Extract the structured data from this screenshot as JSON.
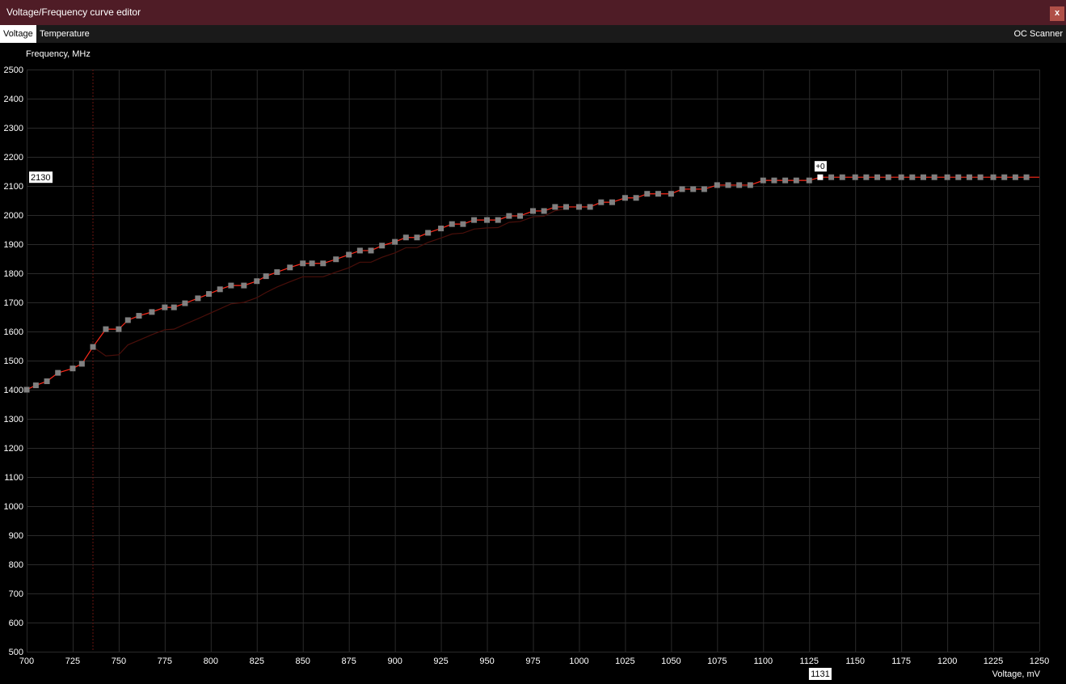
{
  "window": {
    "title": "Voltage/Frequency curve editor",
    "close_label": "x"
  },
  "tabs": [
    {
      "label": "Voltage",
      "active": true
    },
    {
      "label": "Temperature",
      "active": false
    }
  ],
  "oc_scanner_label": "OC Scanner",
  "colors": {
    "curve": "#ff2a1a",
    "default_curve": "#4a0f0a",
    "point": "#808080",
    "selected_point": "#ffffff",
    "grid": "#2a2a2a",
    "titlebar": "#4f1c26",
    "close": "#b05048"
  },
  "chart_data": {
    "type": "line",
    "xlabel": "Voltage, mV",
    "ylabel": "Frequency, MHz",
    "xlim": [
      700,
      1250
    ],
    "ylim": [
      500,
      2500
    ],
    "xticks": [
      700,
      725,
      750,
      775,
      800,
      825,
      850,
      875,
      900,
      925,
      950,
      975,
      1000,
      1025,
      1050,
      1075,
      1100,
      1125,
      1150,
      1175,
      1200,
      1225,
      1250
    ],
    "yticks": [
      500,
      600,
      700,
      800,
      900,
      1000,
      1100,
      1200,
      1300,
      1400,
      1500,
      1600,
      1700,
      1800,
      1900,
      2000,
      2100,
      2200,
      2300,
      2400,
      2500
    ],
    "grid": true,
    "marker_voltage": 736,
    "selected": {
      "voltage": 1131,
      "frequency": 2130,
      "offset_label": "+0",
      "x_readout": "1131",
      "y_readout": "2130"
    },
    "series": [
      {
        "role": "curve",
        "x": [
          700,
          705,
          711,
          717,
          725,
          730,
          736,
          743,
          750,
          755,
          761,
          768,
          775,
          780,
          786,
          793,
          799,
          805,
          811,
          818,
          825,
          830,
          836,
          843,
          850,
          855,
          861,
          868,
          875,
          881,
          887,
          893,
          900,
          906,
          912,
          918,
          925,
          931,
          937,
          943,
          950,
          956,
          962,
          968,
          975,
          981,
          987,
          993,
          1000,
          1006,
          1012,
          1018,
          1025,
          1031,
          1037,
          1043,
          1050,
          1056,
          1062,
          1068,
          1075,
          1081,
          1087,
          1093,
          1100,
          1106,
          1112,
          1118,
          1125,
          1131,
          1137,
          1143,
          1150,
          1156,
          1162,
          1168,
          1175,
          1181,
          1187,
          1193,
          1200,
          1206,
          1212,
          1218,
          1225,
          1231,
          1237,
          1243
        ],
        "y": [
          1400,
          1415,
          1429,
          1458,
          1473,
          1489,
          1547,
          1608,
          1608,
          1639,
          1654,
          1667,
          1683,
          1683,
          1697,
          1714,
          1729,
          1745,
          1758,
          1758,
          1773,
          1790,
          1804,
          1820,
          1834,
          1834,
          1834,
          1848,
          1864,
          1878,
          1878,
          1895,
          1908,
          1923,
          1923,
          1939,
          1954,
          1969,
          1969,
          1983,
          1983,
          1983,
          1997,
          1997,
          2014,
          2014,
          2028,
          2028,
          2028,
          2028,
          2044,
          2044,
          2059,
          2059,
          2073,
          2073,
          2073,
          2089,
          2089,
          2089,
          2103,
          2103,
          2103,
          2103,
          2119,
          2119,
          2119,
          2119,
          2119,
          2130,
          2130,
          2130,
          2130,
          2130,
          2130,
          2130,
          2130,
          2130,
          2130,
          2130,
          2130,
          2130,
          2130,
          2130,
          2130,
          2130,
          2130,
          2130
        ]
      },
      {
        "role": "default-curve",
        "x": [
          736,
          743,
          750,
          755,
          761,
          768,
          775,
          780,
          786,
          793,
          799,
          805,
          811,
          818,
          825,
          830,
          836,
          843,
          850,
          855,
          861,
          868,
          875,
          881,
          887,
          893,
          900,
          906,
          912,
          918,
          925,
          931,
          937,
          943,
          950,
          956,
          962,
          968,
          975,
          981,
          987,
          993
        ],
        "y": [
          1547,
          1516,
          1520,
          1554,
          1570,
          1589,
          1606,
          1608,
          1625,
          1644,
          1661,
          1678,
          1695,
          1700,
          1716,
          1734,
          1753,
          1771,
          1788,
          1788,
          1788,
          1804,
          1819,
          1838,
          1838,
          1855,
          1870,
          1888,
          1888,
          1906,
          1921,
          1935,
          1938,
          1952,
          1956,
          1957,
          1975,
          1978,
          1994,
          1996,
          2015,
          2022
        ]
      }
    ]
  }
}
